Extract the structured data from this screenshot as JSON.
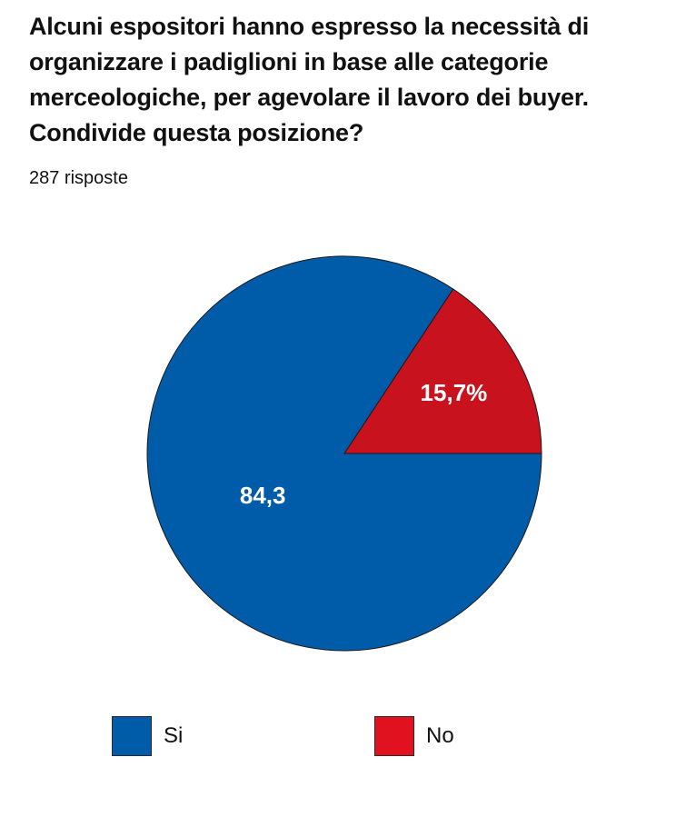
{
  "header": {
    "title": "Alcuni espositori hanno espresso la necessità di organizzare i padiglioni in base alle categorie merceologiche, per agevolare il lavoro dei buyer. Condivide questa posizione?",
    "responses": "287 risposte"
  },
  "chart_data": {
    "type": "pie",
    "title": "Alcuni espositori hanno espresso la necessità di organizzare i padiglioni in base alle categorie merceologiche, per agevolare il lavoro dei buyer. Condivide questa posizione?",
    "subtitle": "287 risposte",
    "legend_position": "bottom",
    "slices": [
      {
        "name": "Si",
        "value": 84.3,
        "label": "84,3",
        "color": "#005CA9"
      },
      {
        "name": "No",
        "value": 15.7,
        "label": "15,7%",
        "color": "#C8121E"
      }
    ]
  },
  "legend": {
    "items": [
      {
        "label": "Si",
        "color": "#005CA9"
      },
      {
        "label": "No",
        "color": "#E1111F"
      }
    ]
  }
}
